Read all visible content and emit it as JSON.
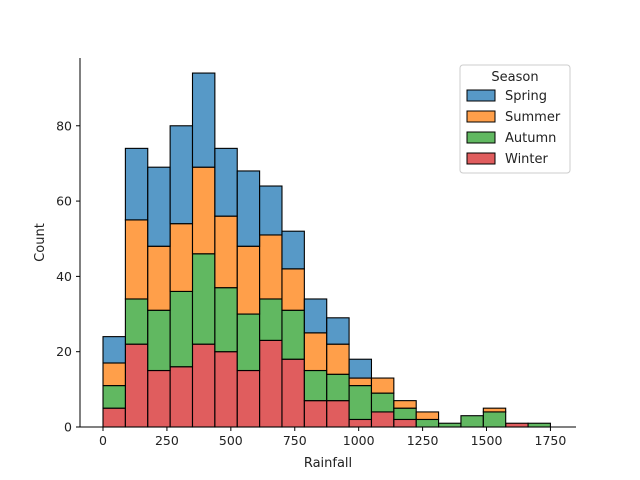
{
  "chart_data": {
    "type": "bar",
    "subtype": "stacked-histogram",
    "xlabel": "Rainfall",
    "ylabel": "Count",
    "xlim": [
      -90,
      1850
    ],
    "ylim": [
      0,
      98
    ],
    "xticks": [
      0,
      250,
      500,
      750,
      1000,
      1250,
      1500,
      1750
    ],
    "yticks": [
      0,
      20,
      40,
      60,
      80
    ],
    "bin_edges": [
      0,
      87.5,
      175,
      262.5,
      350,
      437.5,
      525,
      612.5,
      700,
      787.5,
      875,
      962.5,
      1050,
      1137.5,
      1225,
      1312.5,
      1400,
      1487.5,
      1575,
      1662.5,
      1750
    ],
    "series": [
      {
        "name": "Winter",
        "color": "#d62728",
        "values": [
          5,
          22,
          15,
          16,
          22,
          20,
          15,
          23,
          18,
          7,
          7,
          2,
          4,
          2,
          0,
          0,
          0,
          0,
          1,
          0
        ]
      },
      {
        "name": "Autumn",
        "color": "#2ca02c",
        "values": [
          6,
          12,
          16,
          20,
          24,
          17,
          15,
          11,
          13,
          8,
          7,
          9,
          5,
          3,
          2,
          1,
          3,
          4,
          0,
          1
        ]
      },
      {
        "name": "Summer",
        "color": "#ff7f0e",
        "values": [
          6,
          21,
          17,
          18,
          23,
          19,
          18,
          17,
          11,
          10,
          8,
          2,
          4,
          2,
          2,
          0,
          0,
          1,
          0,
          0
        ]
      },
      {
        "name": "Spring",
        "color": "#1f77b4",
        "values": [
          7,
          19,
          21,
          26,
          25,
          18,
          20,
          13,
          10,
          9,
          7,
          5,
          0,
          0,
          0,
          0,
          0,
          0,
          0,
          0
        ]
      }
    ],
    "legend": {
      "title": "Season",
      "placement": "top-right",
      "order": [
        "Spring",
        "Summer",
        "Autumn",
        "Winter"
      ]
    },
    "bar_alpha": 0.75,
    "grid": false
  }
}
